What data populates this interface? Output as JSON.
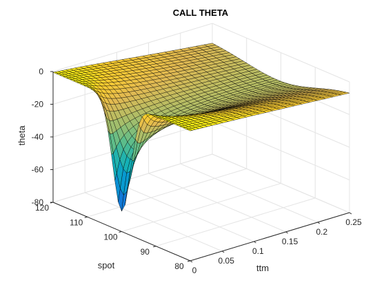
{
  "chart_data": {
    "type": "surface",
    "title": "CALL THETA",
    "xlabel": "ttm",
    "ylabel": "spot",
    "zlabel": "theta",
    "x_ticks": [
      "0",
      "0.05",
      "0.1",
      "0.15",
      "0.2",
      "0.25"
    ],
    "y_ticks": [
      "80",
      "90",
      "100",
      "110",
      "120"
    ],
    "z_ticks": [
      "-80",
      "-60",
      "-40",
      "-20",
      "0"
    ],
    "xlim": [
      0,
      0.25
    ],
    "ylim": [
      80,
      120
    ],
    "zlim": [
      -80,
      0
    ],
    "grid": true,
    "colormap": "parula",
    "edge_color": "#000000",
    "series": [
      {
        "description": "Call option theta as a function of time-to-maturity and spot price; near zero everywhere except a sharp trough near expiry at-the-money",
        "min_value": {
          "ttm": 0.0,
          "spot": 100,
          "theta": -79
        },
        "sample_points": [
          {
            "ttm": 0.25,
            "spot": 80,
            "theta": -3
          },
          {
            "ttm": 0.25,
            "spot": 100,
            "theta": -11
          },
          {
            "ttm": 0.25,
            "spot": 120,
            "theta": -9
          },
          {
            "ttm": 0.1,
            "spot": 100,
            "theta": -16
          },
          {
            "ttm": 0.05,
            "spot": 100,
            "theta": -23
          },
          {
            "ttm": 0.01,
            "spot": 100,
            "theta": -52
          },
          {
            "ttm": 0.0,
            "spot": 120,
            "theta": 0
          },
          {
            "ttm": 0.0,
            "spot": 80,
            "theta": 0
          }
        ]
      }
    ]
  }
}
